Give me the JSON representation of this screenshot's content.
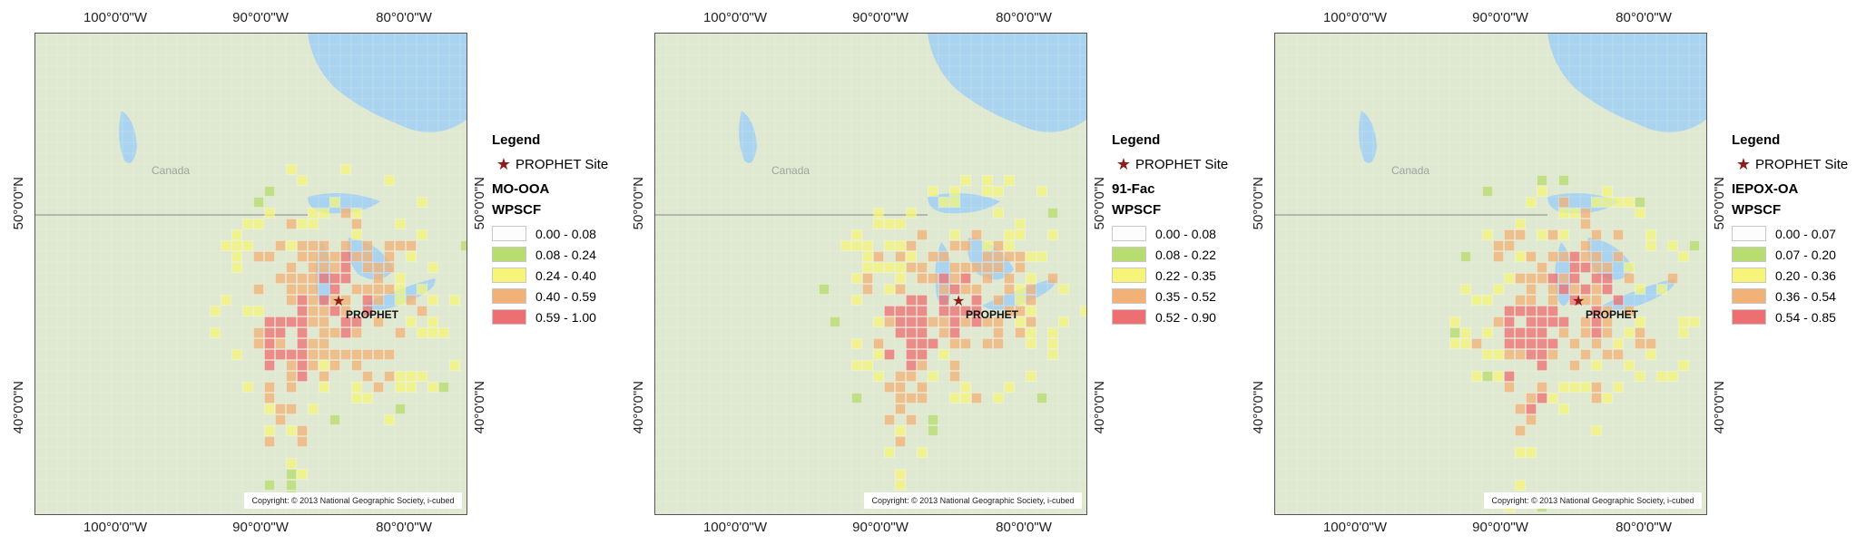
{
  "ticks": {
    "top": [
      "100°0'0\"W",
      "90°0'0\"W",
      "80°0'0\"W"
    ],
    "bottom": [
      "100°0'0\"W",
      "90°0'0\"W",
      "80°0'0\"W"
    ],
    "left": [
      "50°0'0\"N",
      "40°0'0\"N"
    ],
    "right": [
      "50°0'0\"N",
      "40°0'0\"N"
    ]
  },
  "country_label": "Canada",
  "site_label": "PROPHET",
  "copyright": "Copyright: © 2013 National Geographic Society, i-cubed",
  "legend": {
    "title": "Legend",
    "site_entry": "PROPHET Site",
    "field": "WPSCF"
  },
  "colors": {
    "c0": "#fdfdfd",
    "c1": "#b7dc6f",
    "c2": "#f6f57a",
    "c3": "#f2b176",
    "c4": "#ee6f72",
    "water": "#a9d3ef",
    "land": "#dfe8d0",
    "star": "#8b1d1d"
  },
  "panels": [
    {
      "layer": "MO-OOA",
      "classes": [
        "0.00 - 0.08",
        "0.08 - 0.24",
        "0.24 - 0.40",
        "0.40 - 0.59",
        "0.59 - 1.00"
      ]
    },
    {
      "layer": "91-Fac",
      "classes": [
        "0.00 - 0.08",
        "0.08 - 0.22",
        "0.22 - 0.35",
        "0.35 - 0.52",
        "0.52 - 0.90"
      ]
    },
    {
      "layer": "IEPOX-OA",
      "classes": [
        "0.00 - 0.07",
        "0.07 - 0.20",
        "0.20 - 0.36",
        "0.36 - 0.54",
        "0.54 - 0.85"
      ]
    }
  ]
}
